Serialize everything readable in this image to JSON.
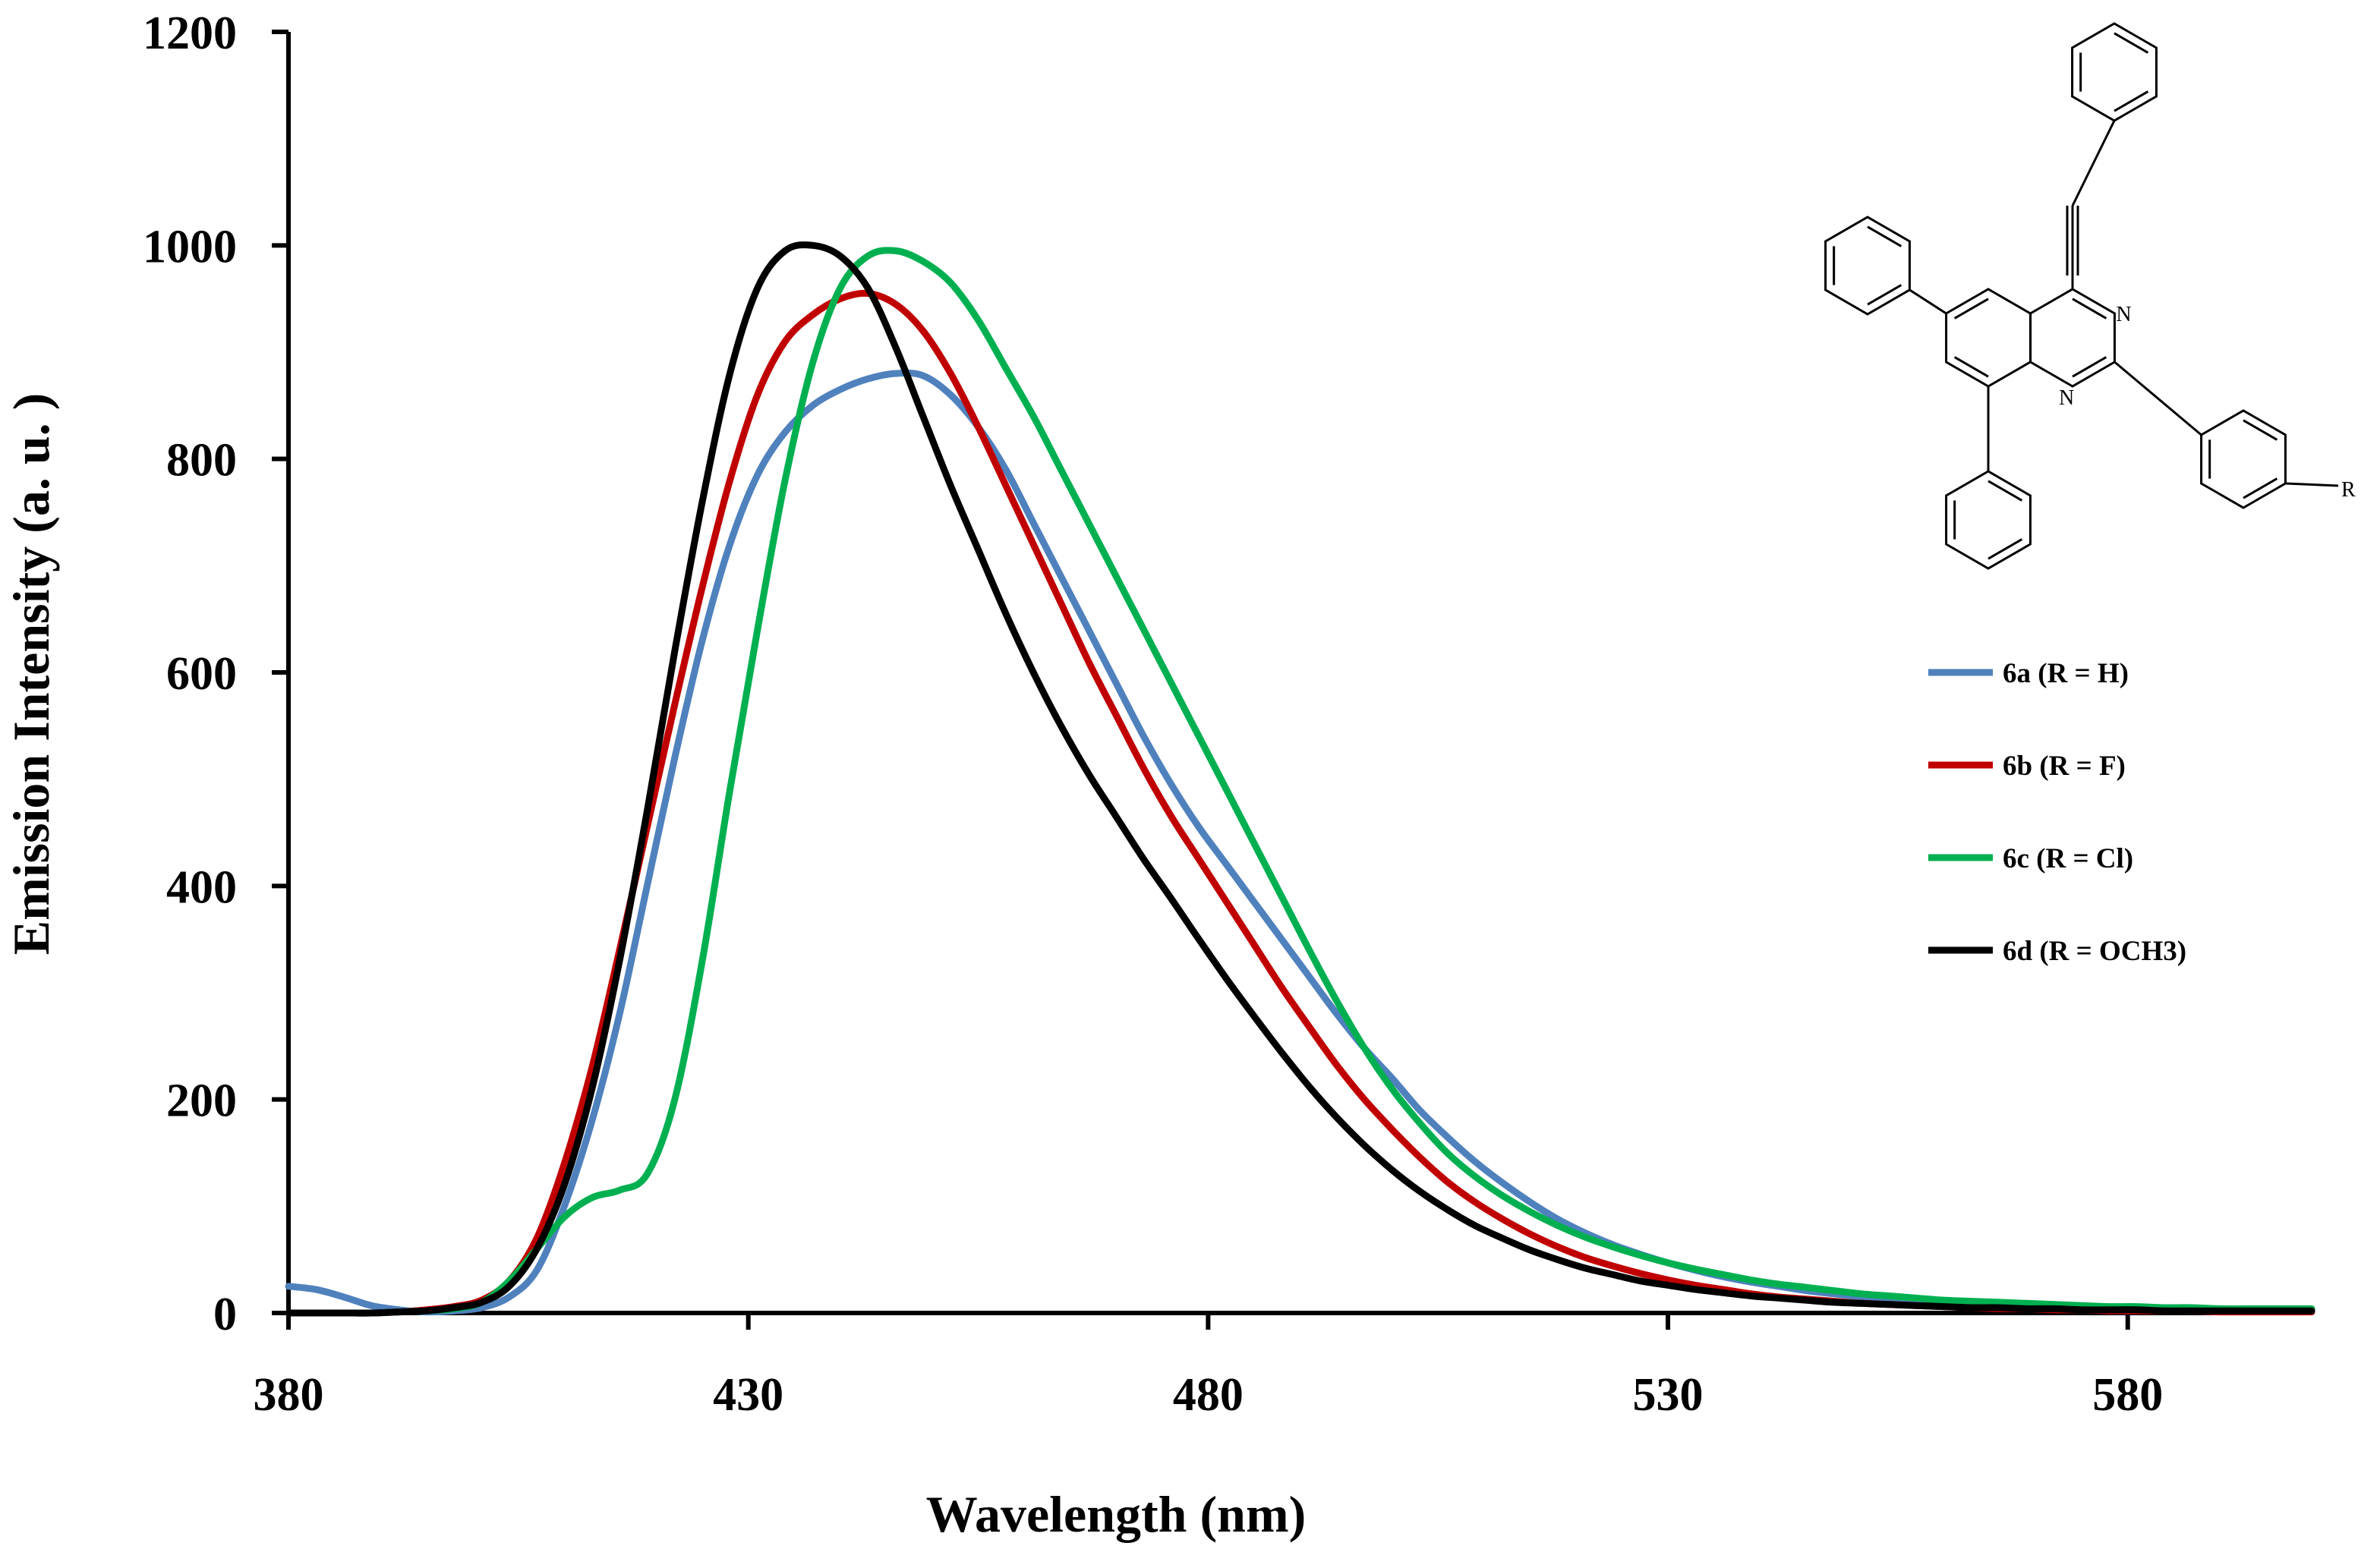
{
  "chart_data": {
    "type": "line",
    "title": "",
    "xlabel": "Wavelength (nm)",
    "ylabel": "Emission Intensity (a. u. )",
    "xlim": [
      380,
      600
    ],
    "ylim": [
      0,
      1200
    ],
    "x_ticks": [
      380,
      430,
      480,
      530,
      580
    ],
    "y_ticks": [
      0,
      200,
      400,
      600,
      800,
      1000,
      1200
    ],
    "grid": false,
    "legend_position": "right",
    "series": [
      {
        "name": "6a (R = H)",
        "color": "#4f81bd",
        "x": [
          380,
          383,
          386,
          389,
          392,
          395,
          398,
          401,
          404,
          407,
          410,
          413,
          416,
          419,
          422,
          425,
          428,
          431,
          434,
          437,
          440,
          443,
          446,
          449,
          452,
          455,
          458,
          461,
          464,
          467,
          470,
          473,
          476,
          479,
          482,
          485,
          488,
          491,
          494,
          497,
          500,
          503,
          506,
          509,
          512,
          515,
          518,
          521,
          524,
          527,
          530,
          533,
          536,
          539,
          542,
          545,
          548,
          551,
          554,
          557,
          560,
          563,
          566,
          569,
          572,
          575,
          578,
          581,
          584,
          587,
          590,
          593,
          596,
          600
        ],
        "y": [
          25,
          22,
          15,
          7,
          3,
          1,
          2,
          5,
          15,
          40,
          100,
          180,
          280,
          400,
          520,
          630,
          720,
          785,
          825,
          850,
          865,
          875,
          880,
          878,
          860,
          830,
          790,
          740,
          690,
          640,
          590,
          540,
          495,
          455,
          420,
          385,
          350,
          315,
          280,
          248,
          220,
          190,
          165,
          142,
          122,
          104,
          88,
          75,
          64,
          55,
          47,
          40,
          34,
          29,
          25,
          21,
          18,
          15,
          13,
          11,
          9,
          8,
          7,
          6,
          5,
          4,
          4,
          3,
          3,
          2,
          2,
          2,
          2,
          2
        ]
      },
      {
        "name": "6b (R = F)",
        "color": "#c00000",
        "x": [
          380,
          383,
          386,
          389,
          392,
          395,
          398,
          401,
          404,
          407,
          410,
          413,
          416,
          419,
          422,
          425,
          428,
          431,
          434,
          437,
          440,
          443,
          446,
          449,
          452,
          455,
          458,
          461,
          464,
          467,
          470,
          473,
          476,
          479,
          482,
          485,
          488,
          491,
          494,
          497,
          500,
          503,
          506,
          509,
          512,
          515,
          518,
          521,
          524,
          527,
          530,
          533,
          536,
          539,
          542,
          545,
          548,
          551,
          554,
          557,
          560,
          563,
          566,
          569,
          572,
          575,
          578,
          581,
          584,
          587,
          590,
          593,
          596,
          600
        ],
        "y": [
          0,
          0,
          0,
          0,
          1,
          3,
          6,
          12,
          30,
          70,
          140,
          230,
          340,
          455,
          570,
          680,
          780,
          860,
          910,
          935,
          950,
          955,
          945,
          920,
          880,
          830,
          775,
          720,
          665,
          610,
          560,
          510,
          465,
          425,
          385,
          345,
          305,
          268,
          232,
          200,
          172,
          146,
          123,
          104,
          88,
          74,
          62,
          52,
          44,
          37,
          31,
          26,
          22,
          18,
          15,
          13,
          11,
          9,
          8,
          7,
          6,
          5,
          4,
          4,
          3,
          3,
          2,
          2,
          2,
          2,
          1,
          1,
          1,
          1
        ]
      },
      {
        "name": "6c (R = Cl)",
        "color": "#00b050",
        "x": [
          380,
          383,
          386,
          389,
          392,
          395,
          398,
          401,
          404,
          407,
          410,
          413,
          416,
          419,
          422,
          425,
          428,
          431,
          434,
          437,
          440,
          443,
          446,
          449,
          452,
          455,
          458,
          461,
          464,
          467,
          470,
          473,
          476,
          479,
          482,
          485,
          488,
          491,
          494,
          497,
          500,
          503,
          506,
          509,
          512,
          515,
          518,
          521,
          524,
          527,
          530,
          533,
          536,
          539,
          542,
          545,
          548,
          551,
          554,
          557,
          560,
          563,
          566,
          569,
          572,
          575,
          578,
          581,
          584,
          587,
          590,
          593,
          596,
          600
        ],
        "y": [
          0,
          0,
          0,
          0,
          1,
          2,
          4,
          10,
          30,
          60,
          90,
          108,
          115,
          130,
          200,
          330,
          490,
          640,
          780,
          890,
          960,
          990,
          995,
          985,
          965,
          930,
          885,
          840,
          790,
          740,
          690,
          640,
          590,
          540,
          490,
          440,
          390,
          340,
          292,
          248,
          210,
          178,
          150,
          128,
          110,
          95,
          82,
          71,
          62,
          54,
          47,
          41,
          36,
          31,
          27,
          24,
          21,
          18,
          16,
          14,
          12,
          11,
          10,
          9,
          8,
          7,
          6,
          6,
          5,
          5,
          4,
          4,
          4,
          4
        ]
      },
      {
        "name": "6d (R = OCH3)",
        "color": "#000000",
        "x": [
          380,
          383,
          386,
          389,
          392,
          395,
          398,
          401,
          404,
          407,
          410,
          413,
          416,
          419,
          422,
          425,
          428,
          431,
          434,
          437,
          440,
          443,
          446,
          449,
          452,
          455,
          458,
          461,
          464,
          467,
          470,
          473,
          476,
          479,
          482,
          485,
          488,
          491,
          494,
          497,
          500,
          503,
          506,
          509,
          512,
          515,
          518,
          521,
          524,
          527,
          530,
          533,
          536,
          539,
          542,
          545,
          548,
          551,
          554,
          557,
          560,
          563,
          566,
          569,
          572,
          575,
          578,
          581,
          584,
          587,
          590,
          593,
          596,
          600
        ],
        "y": [
          0,
          0,
          0,
          0,
          1,
          2,
          5,
          10,
          25,
          60,
          120,
          210,
          330,
          470,
          620,
          760,
          880,
          960,
          995,
          1000,
          990,
          960,
          905,
          840,
          775,
          715,
          655,
          600,
          550,
          505,
          465,
          425,
          388,
          350,
          313,
          278,
          244,
          212,
          183,
          157,
          134,
          114,
          97,
          82,
          70,
          59,
          50,
          42,
          36,
          30,
          26,
          22,
          19,
          16,
          14,
          12,
          10,
          9,
          8,
          7,
          6,
          5,
          5,
          4,
          4,
          3,
          3,
          3,
          2,
          2,
          2,
          2,
          2,
          2
        ]
      }
    ]
  },
  "structure": {
    "substituent_label": "R",
    "nitrogen_label": "N"
  }
}
